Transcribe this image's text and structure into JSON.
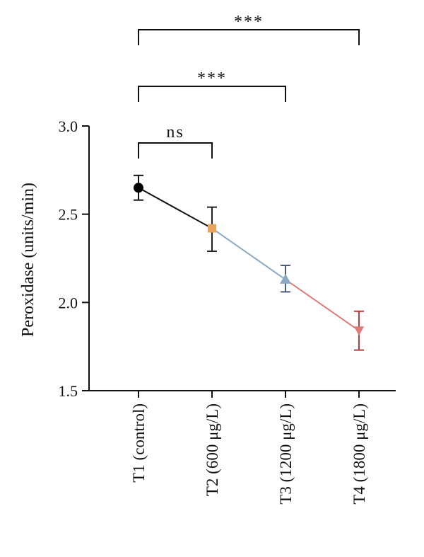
{
  "chart_data": {
    "type": "line",
    "title": "",
    "xlabel": "",
    "ylabel": "Peroxidase (units/min)",
    "ylim": [
      1.5,
      3.0
    ],
    "yticks": [
      "1.5",
      "2.0",
      "2.5",
      "3.0"
    ],
    "categories": [
      "T1 (control)",
      "T2 (600 μg/L)",
      "T3 (1200 μg/L)",
      "T4 (1800 μg/L)"
    ],
    "points": [
      {
        "category": "T1 (control)",
        "mean": 2.65,
        "err_low": 2.58,
        "err_high": 2.72,
        "marker": "circle",
        "color": "#000000"
      },
      {
        "category": "T2 (600 μg/L)",
        "mean": 2.42,
        "err_low": 2.29,
        "err_high": 2.54,
        "marker": "square",
        "color": "#E8A35C"
      },
      {
        "category": "T3 (1200 μg/L)",
        "mean": 2.13,
        "err_low": 2.06,
        "err_high": 2.21,
        "marker": "triangle-up",
        "color": "#8EA9C4"
      },
      {
        "category": "T4 (1800 μg/L)",
        "mean": 1.84,
        "err_low": 1.73,
        "err_high": 1.95,
        "marker": "triangle-down",
        "color": "#E07A7A"
      }
    ],
    "errorbar_colors": [
      "#111111",
      "#222222",
      "#4A5A7A",
      "#C0393B"
    ],
    "significance": [
      {
        "from": 0,
        "to": 1,
        "label": "ns"
      },
      {
        "from": 0,
        "to": 2,
        "label": "***"
      },
      {
        "from": 0,
        "to": 3,
        "label": "***"
      }
    ],
    "grid": false
  }
}
